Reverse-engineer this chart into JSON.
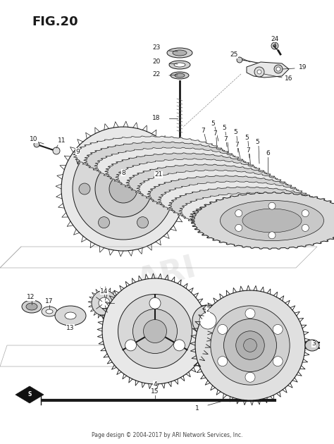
{
  "title": "FIG.20",
  "footer": "Page design © 2004-2017 by ARI Network Services, Inc.",
  "bg": "#ffffff",
  "lc": "#1a1a1a",
  "gray1": "#d0d0d0",
  "gray2": "#b0b0b0",
  "gray3": "#e8e8e8",
  "fig_width": 4.74,
  "fig_height": 6.3,
  "dpi": 100
}
